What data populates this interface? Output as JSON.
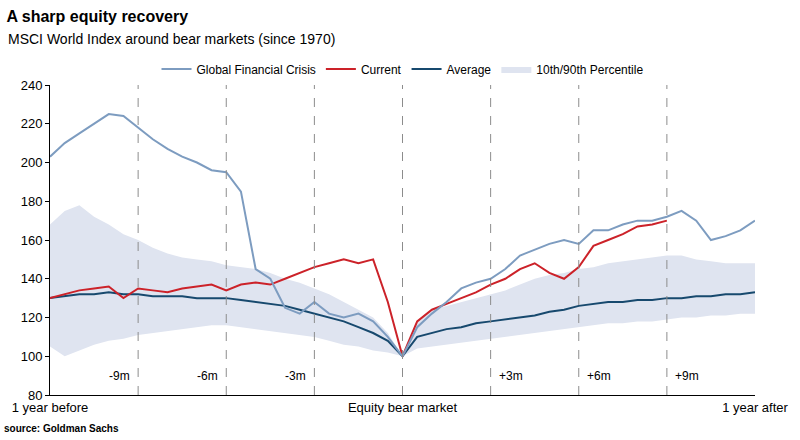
{
  "chart_data": {
    "type": "line",
    "title": "A sharp equity recovery",
    "subtitle": "MSCI World Index around bear markets (since 1970)",
    "source": "source: Goldman Sachs",
    "x": [
      -12,
      -11.5,
      -11,
      -10.5,
      -10,
      -9.5,
      -9,
      -8.5,
      -8,
      -7.5,
      -7,
      -6.5,
      -6,
      -5.5,
      -5,
      -4.5,
      -4,
      -3.5,
      -3,
      -2.5,
      -2,
      -1.5,
      -1,
      -0.5,
      0,
      0.5,
      1,
      1.5,
      2,
      2.5,
      3,
      3.5,
      4,
      4.5,
      5,
      5.5,
      6,
      6.5,
      7,
      7.5,
      8,
      8.5,
      9,
      9.5,
      10,
      10.5,
      11,
      11.5,
      12
    ],
    "xlim": [
      -12,
      12
    ],
    "xticks": [
      {
        "value": -12,
        "label": "1 year before"
      },
      {
        "value": 0,
        "label": "Equity bear market"
      },
      {
        "value": 12,
        "label": "1 year after"
      }
    ],
    "ylim": [
      80,
      240
    ],
    "yticks": [
      80,
      100,
      120,
      140,
      160,
      180,
      200,
      220,
      240
    ],
    "grid": false,
    "legend": "top",
    "annotations": [
      {
        "x": -9,
        "text": "-9m"
      },
      {
        "x": -6,
        "text": "-6m"
      },
      {
        "x": -3,
        "text": "-3m"
      },
      {
        "x": 3,
        "text": "+3m"
      },
      {
        "x": 6,
        "text": "+6m"
      },
      {
        "x": 9,
        "text": "+9m"
      }
    ],
    "series": [
      {
        "name": "10th/90th Percentile",
        "type": "band",
        "color": "#dfe4f0",
        "lower": [
          105,
          100,
          103,
          106,
          108,
          109,
          111,
          112,
          113,
          114,
          115,
          116,
          116,
          115,
          114,
          113,
          112,
          111,
          110,
          108,
          106,
          105,
          103,
          102,
          100,
          104,
          105,
          106,
          107,
          108,
          109,
          110,
          111,
          112,
          113,
          114,
          115,
          116,
          117,
          117,
          118,
          118,
          119,
          120,
          120,
          121,
          121,
          122,
          122
        ],
        "upper": [
          168,
          175,
          178,
          172,
          168,
          163,
          160,
          156,
          153,
          151,
          150,
          149,
          147,
          146,
          145,
          143,
          140,
          138,
          135,
          132,
          128,
          124,
          120,
          112,
          100,
          118,
          124,
          126,
          128,
          130,
          132,
          134,
          137,
          140,
          142,
          143,
          145,
          146,
          148,
          149,
          150,
          151,
          152,
          152,
          150,
          149,
          148,
          148,
          148
        ]
      },
      {
        "name": "Average",
        "color": "#17496e",
        "values": [
          130,
          131,
          132,
          132,
          133,
          132,
          132,
          131,
          131,
          131,
          130,
          130,
          130,
          129,
          128,
          127,
          126,
          124,
          122,
          120,
          118,
          115,
          112,
          108,
          100,
          110,
          112,
          114,
          115,
          117,
          118,
          119,
          120,
          121,
          123,
          124,
          126,
          127,
          128,
          128,
          129,
          129,
          130,
          130,
          131,
          131,
          132,
          132,
          133
        ]
      },
      {
        "name": "Current",
        "color": "#cc2229",
        "values": [
          130,
          132,
          134,
          135,
          136,
          130,
          135,
          134,
          133,
          135,
          136,
          137,
          134,
          137,
          138,
          137,
          140,
          143,
          146,
          148,
          150,
          148,
          150,
          128,
          100,
          118,
          124,
          127,
          130,
          133,
          137,
          140,
          145,
          148,
          143,
          140,
          146,
          157,
          160,
          163,
          167,
          168,
          170,
          null,
          null,
          null,
          null,
          null,
          null
        ]
      },
      {
        "name": "Global Financial Crisis",
        "color": "#7d9cc0",
        "values": [
          203,
          210,
          215,
          220,
          225,
          224,
          218,
          212,
          207,
          203,
          200,
          196,
          195,
          185,
          145,
          140,
          125,
          122,
          128,
          122,
          120,
          122,
          118,
          110,
          100,
          115,
          122,
          128,
          135,
          138,
          140,
          145,
          152,
          155,
          158,
          160,
          158,
          165,
          165,
          168,
          170,
          170,
          172,
          175,
          170,
          160,
          162,
          165,
          170
        ]
      }
    ]
  }
}
